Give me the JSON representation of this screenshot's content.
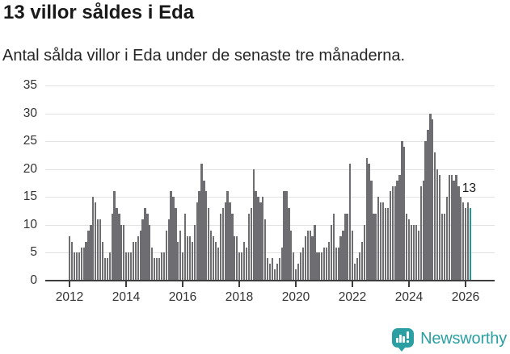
{
  "header": {
    "title": "13 villor såldes i Eda",
    "subtitle": "Antal sålda villor i Eda under de senaste tre månaderna."
  },
  "chart_data": {
    "type": "bar",
    "x_start": "2012",
    "frequency": "monthly",
    "values": [
      8,
      7,
      5,
      5,
      5,
      6,
      6,
      7,
      9,
      10,
      15,
      14,
      11,
      11,
      7,
      4,
      4,
      5,
      12,
      16,
      13,
      12,
      10,
      10,
      5,
      5,
      5,
      7,
      7,
      8,
      9,
      11,
      13,
      12,
      10,
      6,
      4,
      4,
      4,
      5,
      5,
      9,
      11,
      16,
      15,
      13,
      7,
      9,
      5,
      12,
      8,
      8,
      7,
      10,
      14,
      16,
      21,
      18,
      16,
      13,
      9,
      8,
      7,
      6,
      12,
      13,
      14,
      16,
      14,
      12,
      8,
      8,
      5,
      5,
      7,
      6,
      12,
      13,
      20,
      16,
      15,
      14,
      15,
      11,
      4,
      3,
      4,
      2,
      3,
      4,
      6,
      16,
      16,
      13,
      9,
      5,
      2,
      3,
      5,
      6,
      8,
      9,
      9,
      8,
      10,
      5,
      5,
      5,
      6,
      6,
      7,
      10,
      12,
      6,
      6,
      8,
      9,
      12,
      12,
      21,
      9,
      3,
      4,
      5,
      7,
      10,
      22,
      21,
      18,
      12,
      12,
      15,
      14,
      14,
      13,
      13,
      16,
      17,
      17,
      18,
      19,
      25,
      24,
      12,
      11,
      10,
      10,
      10,
      9,
      17,
      18,
      25,
      27,
      30,
      29,
      23,
      20,
      19,
      12,
      12,
      15,
      19,
      19,
      18,
      19,
      17,
      15,
      14,
      13,
      14,
      13
    ],
    "ylim": [
      0,
      35
    ],
    "yticks": [
      0,
      5,
      10,
      15,
      20,
      25,
      30,
      35
    ],
    "xtick_labels": [
      "2012",
      "2014",
      "2016",
      "2018",
      "2020",
      "2022",
      "2024",
      "2026"
    ],
    "grid": "horizontal",
    "bar_color": "#6d6d72",
    "highlight_color": "#1b9a9c",
    "highlight_index": 170,
    "highlight_label": "13"
  },
  "footer": {
    "brand": "Newsworthy",
    "brand_color": "#2b9fa1",
    "logo_icon": "bar-chart-speech-bubble-icon"
  }
}
